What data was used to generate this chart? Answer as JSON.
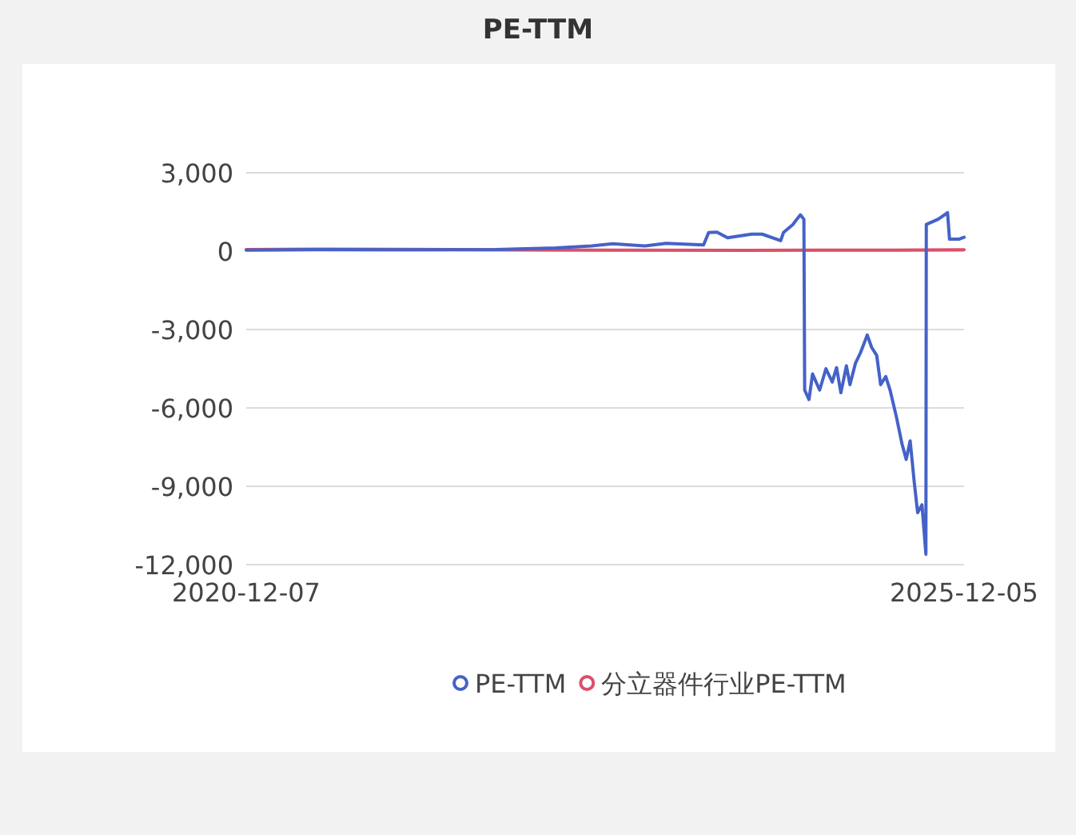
{
  "chart_data": {
    "type": "line",
    "title": "PE-TTM",
    "xlim": [
      "2020-12-07",
      "2025-12-05"
    ],
    "xticks": [
      "2020-12-07",
      "2025-12-05"
    ],
    "ylim": [
      -12000,
      3000
    ],
    "yticks": [
      {
        "value": -12000,
        "label": "-12,000"
      },
      {
        "value": -9000,
        "label": "-9,000"
      },
      {
        "value": -6000,
        "label": "-6,000"
      },
      {
        "value": -3000,
        "label": "-3,000"
      },
      0,
      {
        "value": 3000,
        "label": "3,000"
      }
    ],
    "grid": "y",
    "legend": "bottom",
    "line_style": "solid",
    "series": [
      {
        "name": "PE-TTM",
        "color": "#4562c8",
        "x": [
          "2020-12-07",
          "2021-06-01",
          "2022-01-10",
          "2022-09-01",
          "2023-02-01",
          "2023-05-03",
          "2023-06-26",
          "2023-09-16",
          "2023-11-09",
          "2024-02-12",
          "2024-02-25",
          "2024-03-17",
          "2024-04-13",
          "2024-06-13",
          "2024-07-10",
          "2024-08-26",
          "2024-09-02",
          "2024-09-26",
          "2024-10-06",
          "2024-10-15",
          "2024-10-24",
          "2024-10-26",
          "2024-11-06",
          "2024-11-15",
          "2024-12-03",
          "2024-12-19",
          "2025-01-04",
          "2025-01-15",
          "2025-01-26",
          "2025-02-09",
          "2025-02-18",
          "2025-03-04",
          "2025-03-17",
          "2025-04-03",
          "2025-04-14",
          "2025-04-27",
          "2025-05-07",
          "2025-05-20",
          "2025-05-31",
          "2025-06-16",
          "2025-06-30",
          "2025-07-11",
          "2025-07-21",
          "2025-07-31",
          "2025-08-09",
          "2025-08-20",
          "2025-08-30",
          "2025-08-31",
          "2025-09-30",
          "2025-10-24",
          "2025-10-29",
          "2025-11-23",
          "2025-12-05"
        ],
        "values": [
          40,
          60,
          50,
          60,
          120,
          200,
          280,
          200,
          300,
          240,
          710,
          730,
          510,
          650,
          650,
          400,
          710,
          1020,
          1220,
          1390,
          1220,
          -5320,
          -5680,
          -4700,
          -5320,
          -4500,
          -5010,
          -4460,
          -5420,
          -4390,
          -5110,
          -4290,
          -3880,
          -3210,
          -3680,
          -3990,
          -5110,
          -4800,
          -5320,
          -6340,
          -7360,
          -7970,
          -7260,
          -8790,
          -10010,
          -9710,
          -11600,
          1020,
          1220,
          1470,
          460,
          460,
          530
        ]
      },
      {
        "name": "分立器件行业PE-TTM",
        "color": "#d9506a",
        "x": [
          "2020-12-07",
          "2021-06-01",
          "2022-01-10",
          "2022-09-01",
          "2023-06-01",
          "2024-06-01",
          "2025-06-01",
          "2025-12-05"
        ],
        "values": [
          60,
          80,
          70,
          50,
          40,
          30,
          40,
          50
        ]
      }
    ]
  }
}
